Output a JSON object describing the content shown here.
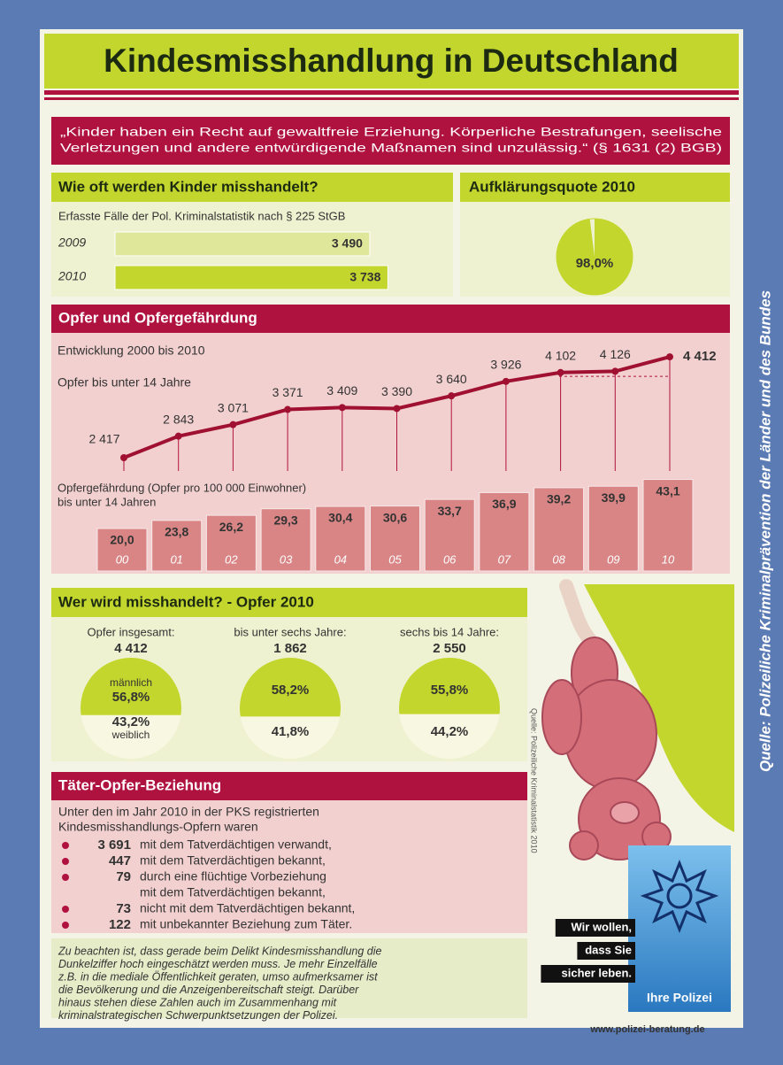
{
  "title": "Kindesmisshandlung in Deutschland",
  "quote_lines": [
    "„Kinder haben ein Recht auf gewaltfreie Erziehung. Körperliche Bestrafungen, seelische",
    "Verletzungen und andere entwürdigende Maßnamen sind unzulässig.“ (§ 1631 (2) BGB)"
  ],
  "cases": {
    "heading": "Wie oft werden Kinder misshandelt?",
    "subtitle": "Erfasste Fälle der Pol. Kriminalstatistik nach § 225 StGB",
    "categories": [
      "2009",
      "2010"
    ],
    "values": [
      3490,
      3738
    ],
    "value_labels": [
      "3 490",
      "3 738"
    ]
  },
  "clearance": {
    "heading": "Aufklärungsquote 2010",
    "value": 98.0,
    "label": "98,0%"
  },
  "victims": {
    "heading": "Opfer und Opfergefährdung",
    "line": {
      "subtitle": "Entwicklung 2000 bis 2010",
      "series_name": "Opfer bis unter 14 Jahre",
      "values": [
        2417,
        2843,
        3071,
        3371,
        3409,
        3390,
        3640,
        3926,
        4102,
        4126,
        4412
      ],
      "value_labels": [
        "2 417",
        "2 843",
        "3 071",
        "3 371",
        "3 409",
        "3 390",
        "3 640",
        "3 926",
        "4 102",
        "4 126",
        "4 412"
      ]
    },
    "rate": {
      "title_lines": [
        "Opfergefährdung (Opfer pro 100 000 Einwohner)",
        "bis unter 14 Jahren"
      ],
      "categories": [
        "00",
        "01",
        "02",
        "03",
        "04",
        "05",
        "06",
        "07",
        "08",
        "09",
        "10"
      ],
      "values": [
        20.0,
        23.8,
        26.2,
        29.3,
        30.4,
        30.6,
        33.7,
        36.9,
        39.2,
        39.9,
        43.1
      ],
      "value_labels": [
        "20,0",
        "23,8",
        "26,2",
        "29,3",
        "30,4",
        "30,6",
        "33,7",
        "36,9",
        "39,2",
        "39,9",
        "43,1"
      ]
    }
  },
  "who": {
    "heading": "Wer wird misshandelt? - Opfer 2010",
    "male_name": "männlich",
    "female_name": "weiblich",
    "groups": [
      {
        "label": "Opfer insgesamt:",
        "total": "4 412",
        "male": 56.8,
        "male_label": "56,8%",
        "female": 43.2,
        "female_label": "43,2%"
      },
      {
        "label": "bis unter sechs Jahre:",
        "total": "1 862",
        "male": 58.2,
        "male_label": "58,2%",
        "female": 41.8,
        "female_label": "41,8%"
      },
      {
        "label": "sechs bis 14 Jahre:",
        "total": "2 550",
        "male": 55.8,
        "male_label": "55,8%",
        "female": 44.2,
        "female_label": "44,2%"
      }
    ]
  },
  "relation": {
    "heading": "Täter-Opfer-Beziehung",
    "intro_lines": [
      "Unter den im Jahr 2010 in der PKS registrierten",
      "Kindesmisshandlungs-Opfern waren"
    ],
    "items": [
      {
        "number": "3 691",
        "text_lines": [
          "mit dem Tatverdächtigen verwandt,"
        ]
      },
      {
        "number": "447",
        "text_lines": [
          "mit dem Tatverdächtigen bekannt,"
        ]
      },
      {
        "number": "79",
        "text_lines": [
          "durch eine flüchtige Vorbeziehung",
          "mit dem Tatverdächtigen bekannt,"
        ]
      },
      {
        "number": "73",
        "text_lines": [
          "nicht mit dem Tatverdächtigen bekannt,"
        ]
      },
      {
        "number": "122",
        "text_lines": [
          "mit unbekannter Beziehung zum Täter."
        ]
      }
    ]
  },
  "note_lines": [
    "Zu beachten ist, dass gerade beim Delikt Kindesmisshandlung die",
    "Dunkelziffer hoch eingeschätzt werden muss. Je mehr Einzelfälle",
    "z.B. in die mediale Öffentlichkeit geraten, umso aufmerksamer ist",
    "die Bevölkerung und die Anzeigenbereitschaft steigt. Darüber",
    "hinaus stehen diese Zahlen auch im Zusammenhang mit",
    "kriminalstrategischen Schwerpunktsetzungen der Polizei."
  ],
  "stats_source": "Quelle: Polizeiliche Kriminalstatistik 2010",
  "police": {
    "slogan_lines": [
      "Wir wollen,",
      "dass Sie",
      "sicher leben."
    ],
    "brand": "Ihre Polizei"
  },
  "website": "www.polizei-beratung.de",
  "source": "Quelle: Polizeiliche Kriminalprävention der Länder und des Bundes"
}
